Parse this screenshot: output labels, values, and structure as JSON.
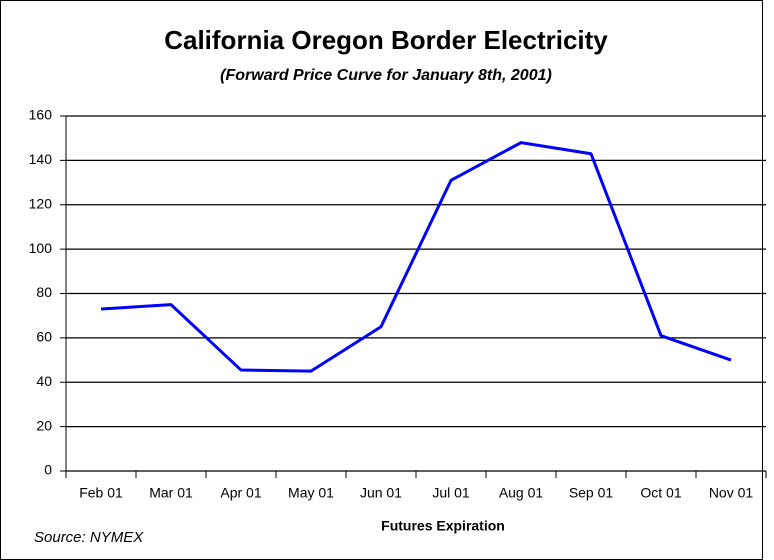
{
  "chart_data": {
    "type": "line",
    "title": "California Oregon Border Electricity",
    "subtitle": "(Forward Price Curve for January 8th, 2001)",
    "x_label": "Futures Expiration",
    "annotation": "Source: NYMEX",
    "categories": [
      "Feb 01",
      "Mar 01",
      "Apr 01",
      "May 01",
      "Jun 01",
      "Jul 01",
      "Aug 01",
      "Sep 01",
      "Oct 01",
      "Nov 01"
    ],
    "series": [
      {
        "color": "#0000ff",
        "values": [
          73,
          75,
          45.5,
          45,
          65,
          131,
          148,
          143,
          61,
          50
        ]
      }
    ],
    "ylim": [
      0,
      160
    ],
    "yticks": [
      0,
      20,
      40,
      60,
      80,
      100,
      120,
      140,
      160
    ],
    "grid": true
  }
}
